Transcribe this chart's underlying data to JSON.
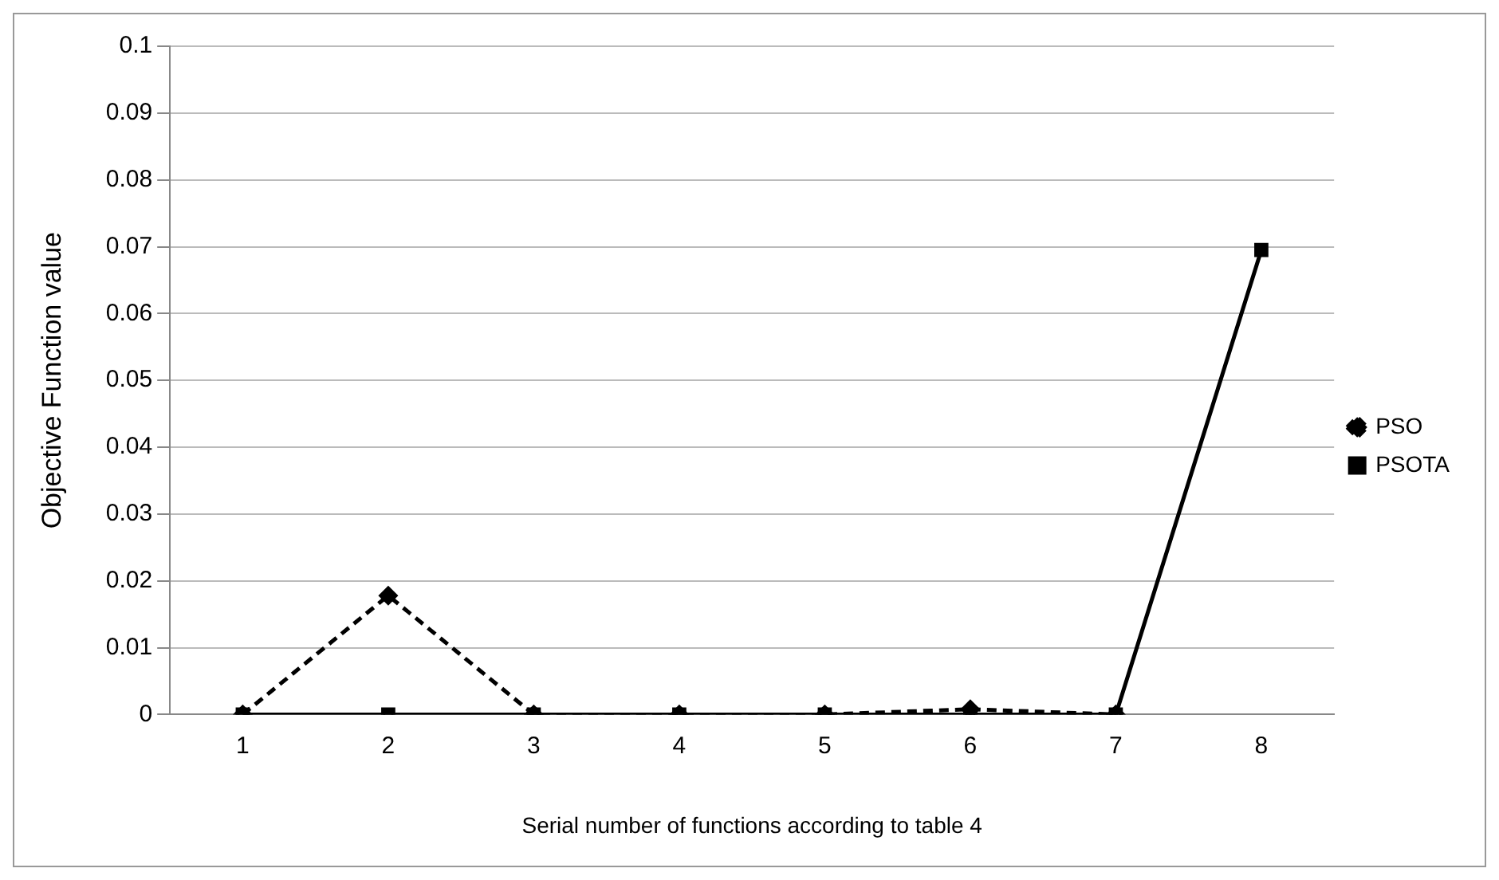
{
  "chart_data": {
    "type": "line",
    "xlabel": "Serial number of functions according to table 4",
    "ylabel": "Objective Function value",
    "categories": [
      "1",
      "2",
      "3",
      "4",
      "5",
      "6",
      "7",
      "8"
    ],
    "series": [
      {
        "name": "PSO",
        "color": "#000000",
        "values": [
          0,
          0.0178,
          0,
          0,
          0,
          0.0008,
          0,
          null
        ],
        "marker": "diamond",
        "line_style": "dashed"
      },
      {
        "name": "PSOTA",
        "color": "#000000",
        "values": [
          0,
          0,
          0,
          0,
          0,
          0,
          0,
          0.0695
        ],
        "marker": "square",
        "line_style": "solid"
      }
    ],
    "ylim": [
      0,
      0.1
    ],
    "yticks": [
      0,
      0.01,
      0.02,
      0.03,
      0.04,
      0.05,
      0.06,
      0.07,
      0.08,
      0.09,
      0.1
    ],
    "grid": "y",
    "legend": "right"
  }
}
